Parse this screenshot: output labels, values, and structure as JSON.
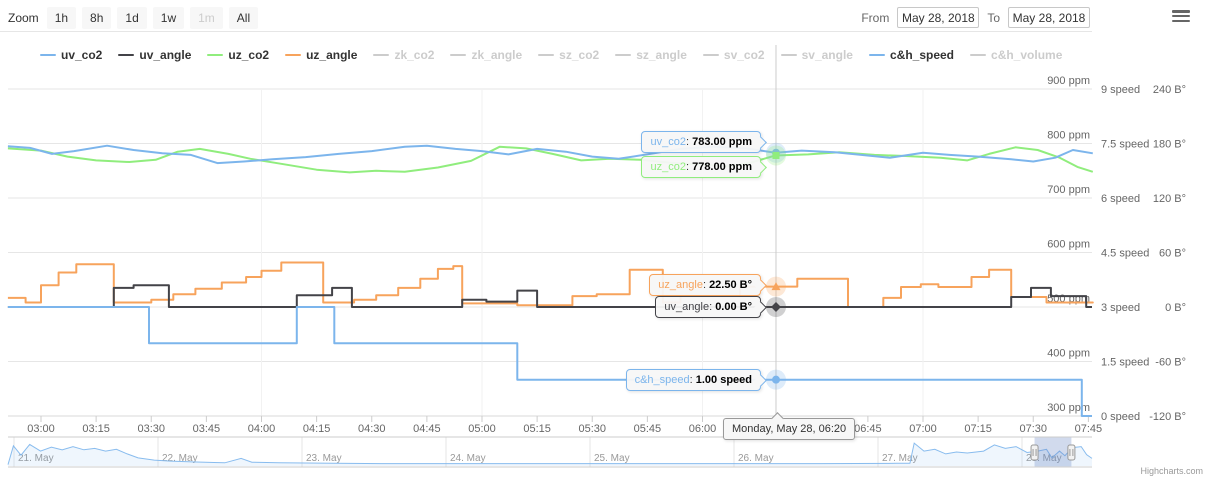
{
  "header": {
    "zoom_label": "Zoom",
    "zoom_buttons": [
      {
        "label": "1h",
        "enabled": true
      },
      {
        "label": "8h",
        "enabled": true
      },
      {
        "label": "1d",
        "enabled": true
      },
      {
        "label": "1w",
        "enabled": true
      },
      {
        "label": "1m",
        "enabled": false
      },
      {
        "label": "All",
        "enabled": true
      }
    ],
    "from_label": "From",
    "from_value": "May 28, 2018",
    "to_label": "To",
    "to_value": "May 28, 2018"
  },
  "legend": {
    "items": [
      {
        "label": "uv_co2",
        "color": "#7cb5ec",
        "enabled": true
      },
      {
        "label": "uv_angle",
        "color": "#434348",
        "enabled": true
      },
      {
        "label": "uz_co2",
        "color": "#90ed7d",
        "enabled": true
      },
      {
        "label": "uz_angle",
        "color": "#f7a35c",
        "enabled": true
      },
      {
        "label": "zk_co2",
        "color": "#cccccc",
        "enabled": false
      },
      {
        "label": "zk_angle",
        "color": "#cccccc",
        "enabled": false
      },
      {
        "label": "sz_co2",
        "color": "#cccccc",
        "enabled": false
      },
      {
        "label": "sz_angle",
        "color": "#cccccc",
        "enabled": false
      },
      {
        "label": "sv_co2",
        "color": "#cccccc",
        "enabled": false
      },
      {
        "label": "sv_angle",
        "color": "#cccccc",
        "enabled": false
      },
      {
        "label": "c&h_speed",
        "color": "#7cb5ec",
        "enabled": true
      },
      {
        "label": "c&h_volume",
        "color": "#cccccc",
        "enabled": false
      }
    ]
  },
  "tooltips": {
    "uv_co2": {
      "label": "uv_co2",
      "value": "783.00 ppm"
    },
    "uz_co2": {
      "label": "uz_co2",
      "value": "778.00 ppm"
    },
    "uz_angle": {
      "label": "uz_angle",
      "value": "22.50 B°"
    },
    "uv_angle": {
      "label": "uv_angle",
      "value": "0.00 B°"
    },
    "ch_speed": {
      "label": "c&h_speed",
      "value": "1.00 speed"
    },
    "date": "Monday, May 28, 06:20"
  },
  "chart_data": {
    "type": "line",
    "title": "",
    "x_axis": {
      "crosshair_time": "06:20",
      "crosshair_hour": 6.3333,
      "ticks": [
        [
          3.0,
          "03:00"
        ],
        [
          3.25,
          "03:15"
        ],
        [
          3.5,
          "03:30"
        ],
        [
          3.75,
          "03:45"
        ],
        [
          4.0,
          "04:00"
        ],
        [
          4.25,
          "04:15"
        ],
        [
          4.5,
          "04:30"
        ],
        [
          4.75,
          "04:45"
        ],
        [
          5.0,
          "05:00"
        ],
        [
          5.25,
          "05:15"
        ],
        [
          5.5,
          "05:30"
        ],
        [
          5.75,
          "05:45"
        ],
        [
          6.0,
          "06:00"
        ],
        [
          6.75,
          "06:45"
        ],
        [
          7.0,
          "07:00"
        ],
        [
          7.25,
          "07:15"
        ],
        [
          7.5,
          "07:30"
        ],
        [
          7.75,
          "07:45"
        ]
      ]
    },
    "y_axes": [
      {
        "id": "ppm",
        "unit": "ppm",
        "ticks": [
          900,
          800,
          700,
          600,
          500,
          400,
          300
        ]
      },
      {
        "id": "speed",
        "unit": "speed",
        "ticks": [
          9,
          7.5,
          6,
          4.5,
          3,
          1.5,
          0
        ]
      },
      {
        "id": "deg",
        "unit": "B°",
        "ticks": [
          240,
          180,
          120,
          60,
          0,
          -60,
          -120
        ]
      }
    ],
    "series": [
      {
        "name": "uz_co2",
        "color": "#90ed7d",
        "axis": "ppm",
        "step": false,
        "points": [
          [
            2.85,
            791
          ],
          [
            3.0,
            787
          ],
          [
            3.12,
            776
          ],
          [
            3.25,
            769
          ],
          [
            3.4,
            766
          ],
          [
            3.52,
            770
          ],
          [
            3.62,
            785
          ],
          [
            3.72,
            790
          ],
          [
            3.85,
            781
          ],
          [
            3.95,
            772
          ],
          [
            4.1,
            762
          ],
          [
            4.25,
            752
          ],
          [
            4.4,
            747
          ],
          [
            4.52,
            750
          ],
          [
            4.65,
            748
          ],
          [
            4.8,
            756
          ],
          [
            4.95,
            768
          ],
          [
            5.08,
            794
          ],
          [
            5.2,
            791
          ],
          [
            5.32,
            781
          ],
          [
            5.45,
            769
          ],
          [
            5.58,
            772
          ],
          [
            5.72,
            770
          ],
          [
            5.85,
            765
          ],
          [
            6.0,
            761
          ],
          [
            6.12,
            758
          ],
          [
            6.22,
            765
          ],
          [
            6.33,
            778
          ],
          [
            6.48,
            780
          ],
          [
            6.62,
            784
          ],
          [
            6.78,
            779
          ],
          [
            6.92,
            777
          ],
          [
            7.08,
            774
          ],
          [
            7.2,
            769
          ],
          [
            7.3,
            781
          ],
          [
            7.42,
            793
          ],
          [
            7.52,
            788
          ],
          [
            7.62,
            774
          ],
          [
            7.7,
            757
          ],
          [
            7.77,
            748
          ]
        ]
      },
      {
        "name": "uv_co2",
        "color": "#7cb5ec",
        "axis": "ppm",
        "step": false,
        "points": [
          [
            2.85,
            795
          ],
          [
            2.95,
            792
          ],
          [
            3.05,
            781
          ],
          [
            3.15,
            786
          ],
          [
            3.3,
            796
          ],
          [
            3.42,
            788
          ],
          [
            3.55,
            782
          ],
          [
            3.68,
            779
          ],
          [
            3.8,
            764
          ],
          [
            3.92,
            767
          ],
          [
            4.05,
            771
          ],
          [
            4.2,
            775
          ],
          [
            4.35,
            781
          ],
          [
            4.5,
            786
          ],
          [
            4.65,
            794
          ],
          [
            4.75,
            796
          ],
          [
            4.88,
            790
          ],
          [
            5.0,
            786
          ],
          [
            5.12,
            780
          ],
          [
            5.25,
            790
          ],
          [
            5.38,
            785
          ],
          [
            5.5,
            776
          ],
          [
            5.62,
            772
          ],
          [
            5.78,
            782
          ],
          [
            5.9,
            790
          ],
          [
            6.05,
            794
          ],
          [
            6.2,
            791
          ],
          [
            6.33,
            783
          ],
          [
            6.45,
            787
          ],
          [
            6.6,
            784
          ],
          [
            6.72,
            779
          ],
          [
            6.85,
            774
          ],
          [
            7.0,
            783
          ],
          [
            7.12,
            779
          ],
          [
            7.25,
            776
          ],
          [
            7.4,
            771
          ],
          [
            7.5,
            767
          ],
          [
            7.6,
            774
          ],
          [
            7.68,
            788
          ],
          [
            7.77,
            782
          ]
        ]
      },
      {
        "name": "uz_angle",
        "color": "#f7a35c",
        "axis": "deg",
        "step": true,
        "points": [
          [
            2.85,
            10
          ],
          [
            2.93,
            5
          ],
          [
            3.0,
            24
          ],
          [
            3.08,
            38
          ],
          [
            3.16,
            47
          ],
          [
            3.33,
            5
          ],
          [
            3.5,
            8
          ],
          [
            3.6,
            14
          ],
          [
            3.7,
            20
          ],
          [
            3.82,
            27
          ],
          [
            3.93,
            33
          ],
          [
            4.0,
            40
          ],
          [
            4.09,
            49
          ],
          [
            4.28,
            5
          ],
          [
            4.42,
            8
          ],
          [
            4.52,
            13
          ],
          [
            4.62,
            21
          ],
          [
            4.72,
            31
          ],
          [
            4.8,
            42
          ],
          [
            4.87,
            45
          ],
          [
            4.91,
            4
          ],
          [
            5.16,
            2
          ],
          [
            5.41,
            12
          ],
          [
            5.52,
            14
          ],
          [
            5.67,
            41
          ],
          [
            5.82,
            5
          ],
          [
            5.9,
            12
          ],
          [
            6.17,
            22.5
          ],
          [
            6.43,
            31
          ],
          [
            6.66,
            0
          ],
          [
            6.82,
            10
          ],
          [
            6.9,
            22
          ],
          [
            6.99,
            25
          ],
          [
            7.07,
            22
          ],
          [
            7.22,
            33
          ],
          [
            7.3,
            41
          ],
          [
            7.4,
            11
          ],
          [
            7.56,
            5
          ],
          [
            7.77,
            5
          ]
        ]
      },
      {
        "name": "uv_angle",
        "color": "#434348",
        "axis": "deg",
        "step": true,
        "points": [
          [
            2.85,
            0
          ],
          [
            3.33,
            21
          ],
          [
            3.42,
            24
          ],
          [
            3.58,
            0
          ],
          [
            4.16,
            13
          ],
          [
            4.32,
            21
          ],
          [
            4.41,
            0
          ],
          [
            4.91,
            8
          ],
          [
            5.02,
            6
          ],
          [
            5.16,
            18
          ],
          [
            5.25,
            0
          ],
          [
            7.4,
            11
          ],
          [
            7.49,
            21
          ],
          [
            7.58,
            12
          ],
          [
            7.74,
            0
          ]
        ]
      },
      {
        "name": "c&h_speed",
        "color": "#7cb5ec",
        "axis": "speed",
        "step": true,
        "points": [
          [
            2.85,
            3
          ],
          [
            3.49,
            2
          ],
          [
            4.16,
            3
          ],
          [
            4.33,
            2
          ],
          [
            5.16,
            1
          ],
          [
            7.72,
            0
          ]
        ]
      }
    ],
    "crosshair_markers": [
      {
        "series": "uv_co2",
        "axis": "ppm",
        "value": 783,
        "symbol": "circle",
        "color": "#7cb5ec"
      },
      {
        "series": "uz_co2",
        "axis": "ppm",
        "value": 778,
        "symbol": "square",
        "color": "#90ed7d"
      },
      {
        "series": "uz_angle",
        "axis": "deg",
        "value": 22.5,
        "symbol": "triangle",
        "color": "#f7a35c"
      },
      {
        "series": "uv_angle",
        "axis": "deg",
        "value": 0,
        "symbol": "diamond",
        "color": "#434348"
      },
      {
        "series": "c&h_speed",
        "axis": "speed",
        "value": 1,
        "symbol": "circle",
        "color": "#7cb5ec"
      }
    ],
    "navigator": {
      "labels": [
        "21. May",
        "22. May",
        "23. May",
        "24. May",
        "25. May",
        "26. May",
        "27. May",
        "28. May"
      ],
      "selection": {
        "from": 0.947,
        "to": 0.981
      },
      "points": [
        [
          0,
          0.05
        ],
        [
          0.005,
          0.75
        ],
        [
          0.012,
          0.4
        ],
        [
          0.02,
          0.8
        ],
        [
          0.03,
          0.55
        ],
        [
          0.04,
          0.7
        ],
        [
          0.05,
          0.6
        ],
        [
          0.06,
          0.72
        ],
        [
          0.07,
          0.6
        ],
        [
          0.08,
          0.65
        ],
        [
          0.09,
          0.55
        ],
        [
          0.1,
          0.62
        ],
        [
          0.11,
          0.45
        ],
        [
          0.12,
          0.3
        ],
        [
          0.135,
          0.22
        ],
        [
          0.15,
          0.18
        ],
        [
          0.17,
          0.15
        ],
        [
          0.19,
          0.13
        ],
        [
          0.2,
          0.12
        ],
        [
          0.215,
          0.28
        ],
        [
          0.225,
          0.14
        ],
        [
          0.25,
          0.12
        ],
        [
          0.3,
          0.1
        ],
        [
          0.35,
          0.09
        ],
        [
          0.45,
          0.09
        ],
        [
          0.55,
          0.09
        ],
        [
          0.65,
          0.09
        ],
        [
          0.75,
          0.09
        ],
        [
          0.82,
          0.1
        ],
        [
          0.832,
          0.1
        ],
        [
          0.836,
          0.85
        ],
        [
          0.845,
          0.55
        ],
        [
          0.855,
          0.62
        ],
        [
          0.865,
          0.45
        ],
        [
          0.875,
          0.52
        ],
        [
          0.885,
          0.48
        ],
        [
          0.9,
          0.55
        ],
        [
          0.91,
          0.78
        ],
        [
          0.92,
          0.65
        ],
        [
          0.93,
          0.72
        ],
        [
          0.94,
          0.5
        ],
        [
          0.95,
          0.55
        ],
        [
          0.958,
          0.62
        ],
        [
          0.963,
          0.3
        ],
        [
          0.97,
          0.55
        ],
        [
          0.975,
          0.38
        ],
        [
          0.982,
          0.68
        ],
        [
          0.99,
          0.72
        ],
        [
          0.995,
          0.42
        ],
        [
          1,
          0.28
        ]
      ]
    }
  },
  "credit": "Highcharts.com"
}
